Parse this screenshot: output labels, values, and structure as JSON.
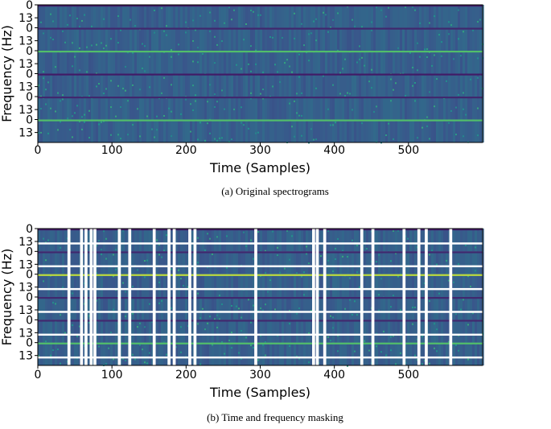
{
  "chart_data": [
    {
      "type": "heatmap",
      "xlabel": "Time (Samples)",
      "ylabel": "Frequency (Hz)",
      "caption": "(a) Original spectrograms",
      "xlim": [
        0,
        600
      ],
      "xticks": [
        0,
        100,
        200,
        300,
        400,
        500
      ],
      "ylim": [
        23,
        0
      ],
      "yticks": [
        0,
        13
      ],
      "panels": 6
    },
    {
      "type": "heatmap",
      "xlabel": "Time (Samples)",
      "ylabel": "Frequency (Hz)",
      "caption": "(b) Time and frequency masking",
      "xlim": [
        0,
        600
      ],
      "xticks": [
        0,
        100,
        200,
        300,
        400,
        500
      ],
      "ylim": [
        23,
        0
      ],
      "yticks": [
        0,
        13
      ],
      "panels": 6,
      "time_masks": [
        40,
        57,
        63,
        70,
        75,
        108,
        122,
        155,
        175,
        182,
        203,
        210,
        292,
        370,
        375,
        385,
        435,
        450,
        492,
        512,
        522,
        555
      ],
      "time_mask_width": 4,
      "freq_masks": [
        14
      ],
      "freq_mask_width": 2
    }
  ]
}
